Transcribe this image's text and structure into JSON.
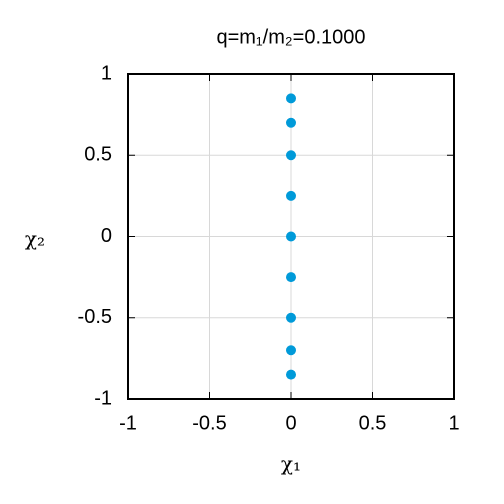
{
  "chart_data": {
    "type": "scatter",
    "title": "q=m₁/m₂=0.1000",
    "x_label": "χ₁",
    "y_label": "χ₂",
    "x": [
      0,
      0,
      0,
      0,
      0,
      0,
      0,
      0,
      0
    ],
    "values": [
      0.85,
      0.7,
      0.5,
      0.25,
      0,
      -0.25,
      -0.5,
      -0.7,
      -0.85
    ],
    "color": "#009ad9",
    "xlim": [
      -1,
      1
    ],
    "xticks": [
      -1,
      -0.5,
      0,
      0.5,
      1
    ],
    "ylim": [
      -1,
      1
    ],
    "yticks": [
      -1,
      -0.5,
      0,
      0.5,
      1
    ],
    "grid": true
  }
}
